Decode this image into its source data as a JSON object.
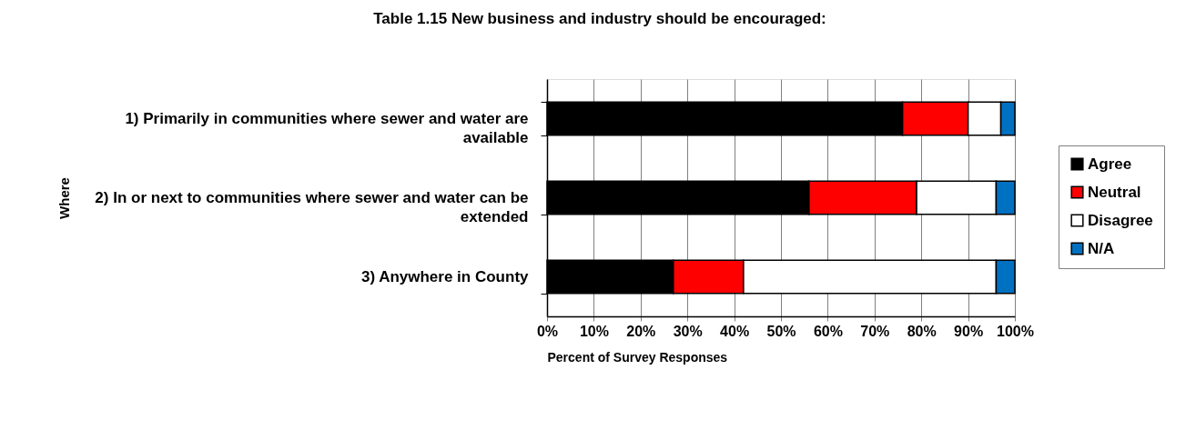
{
  "chart_data": {
    "type": "bar",
    "orientation": "horizontal",
    "stacked": true,
    "title": "Table 1.15 New business and industry should be encouraged:",
    "xlabel": "Percent of Survey Responses",
    "ylabel": "Where",
    "categories": [
      "1) Primarily in communities where sewer and water are available",
      "2) In or next to communities where sewer and water can be extended",
      "3) Anywhere in County"
    ],
    "series": [
      {
        "name": "Agree",
        "color": "#000000",
        "values": [
          76,
          56,
          27
        ]
      },
      {
        "name": "Neutral",
        "color": "#ff0000",
        "values": [
          14,
          23,
          15
        ]
      },
      {
        "name": "Disagree",
        "color": "#ffffff",
        "values": [
          7,
          17,
          54
        ]
      },
      {
        "name": "N/A",
        "color": "#0070c0",
        "values": [
          3,
          4,
          4
        ]
      }
    ],
    "xlim": [
      0,
      100
    ],
    "xticks": [
      {
        "value": 0,
        "label": "0%"
      },
      {
        "value": 10,
        "label": "10%"
      },
      {
        "value": 20,
        "label": "20%"
      },
      {
        "value": 30,
        "label": "30%"
      },
      {
        "value": 40,
        "label": "40%"
      },
      {
        "value": 50,
        "label": "50%"
      },
      {
        "value": 60,
        "label": "60%"
      },
      {
        "value": 70,
        "label": "70%"
      },
      {
        "value": 80,
        "label": "80%"
      },
      {
        "value": 90,
        "label": "90%"
      },
      {
        "value": 100,
        "label": "100%"
      }
    ],
    "grid": "x",
    "legend": "right"
  }
}
